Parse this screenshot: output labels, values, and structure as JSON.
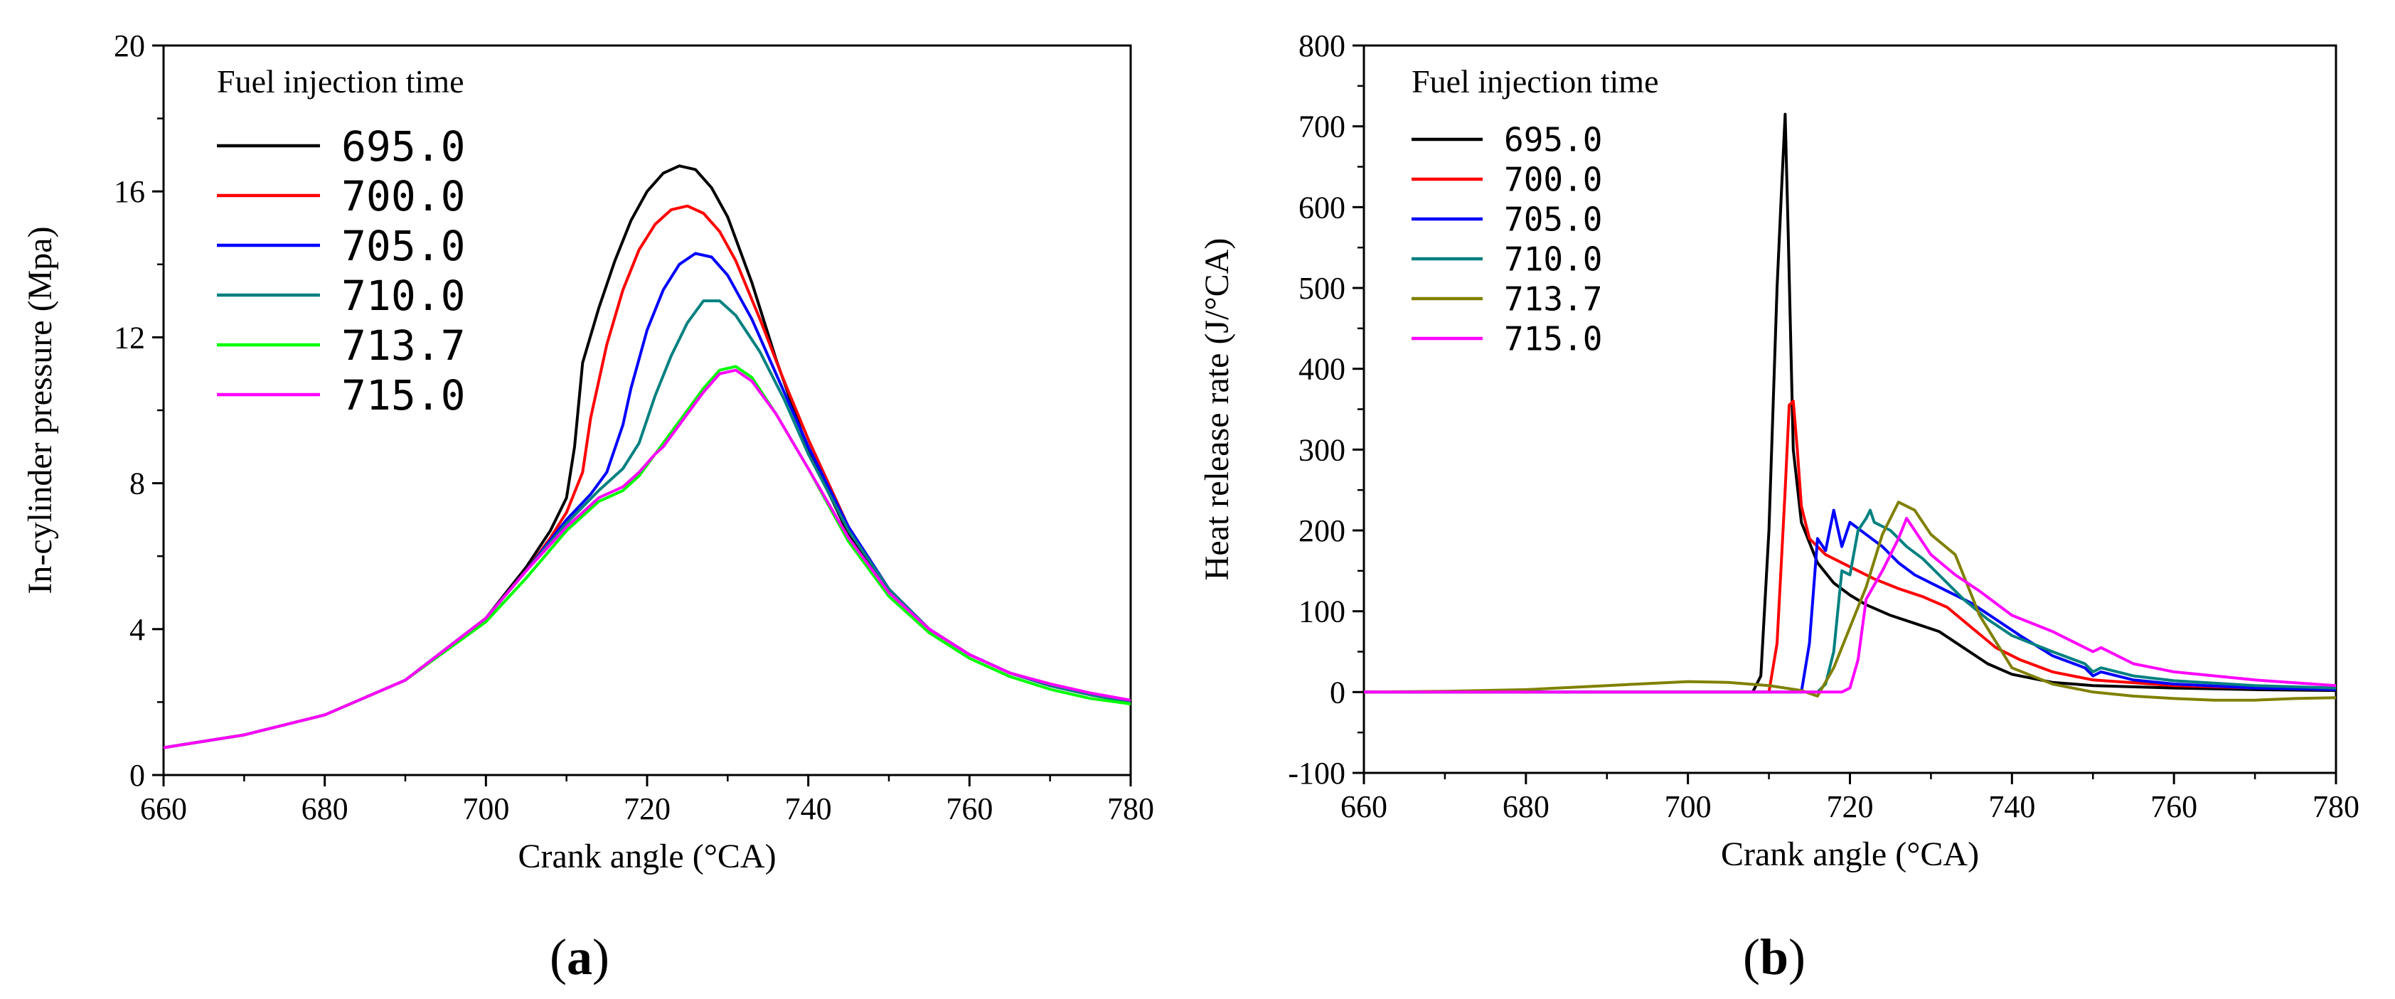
{
  "chart_data": [
    {
      "type": "line",
      "panel_label": "a",
      "xlabel": "Crank angle (°CA)",
      "ylabel": "In-cylinder pressure (Mpa)",
      "xlim": [
        660,
        780
      ],
      "ylim": [
        0,
        20
      ],
      "xticks": [
        660,
        680,
        700,
        720,
        740,
        760,
        780
      ],
      "yticks": [
        0,
        4,
        8,
        12,
        16,
        20
      ],
      "grid": false,
      "legend_title": "Fuel injection time",
      "legend_position": "top-left",
      "series": [
        {
          "name": "695.0",
          "color": "#000000",
          "x": [
            660,
            670,
            680,
            690,
            700,
            705,
            708,
            710,
            711,
            712,
            714,
            716,
            718,
            720,
            722,
            724,
            726,
            728,
            730,
            733,
            736,
            740,
            745,
            750,
            755,
            760,
            765,
            770,
            775,
            780
          ],
          "y": [
            0.75,
            1.1,
            1.65,
            2.6,
            4.3,
            5.7,
            6.7,
            7.6,
            9.0,
            11.3,
            12.8,
            14.1,
            15.2,
            16.0,
            16.5,
            16.7,
            16.6,
            16.1,
            15.3,
            13.5,
            11.4,
            8.9,
            6.6,
            5.0,
            4.0,
            3.3,
            2.8,
            2.45,
            2.2,
            2.0
          ]
        },
        {
          "name": "700.0",
          "color": "#ff0000",
          "x": [
            660,
            670,
            680,
            690,
            700,
            705,
            708,
            710,
            712,
            713,
            715,
            717,
            719,
            721,
            723,
            725,
            727,
            729,
            731,
            734,
            737,
            740,
            745,
            750,
            755,
            760,
            765,
            770,
            775,
            780
          ],
          "y": [
            0.75,
            1.1,
            1.65,
            2.6,
            4.3,
            5.6,
            6.5,
            7.2,
            8.3,
            9.8,
            11.8,
            13.3,
            14.4,
            15.1,
            15.5,
            15.6,
            15.4,
            14.9,
            14.1,
            12.5,
            10.8,
            9.2,
            6.8,
            5.1,
            4.0,
            3.3,
            2.8,
            2.45,
            2.2,
            2.0
          ]
        },
        {
          "name": "705.0",
          "color": "#0000ff",
          "x": [
            660,
            670,
            680,
            690,
            700,
            705,
            710,
            713,
            715,
            717,
            718,
            720,
            722,
            724,
            726,
            728,
            730,
            733,
            736,
            740,
            745,
            750,
            755,
            760,
            765,
            770,
            775,
            780
          ],
          "y": [
            0.75,
            1.1,
            1.65,
            2.6,
            4.3,
            5.6,
            7.0,
            7.7,
            8.3,
            9.6,
            10.6,
            12.2,
            13.3,
            14.0,
            14.3,
            14.2,
            13.7,
            12.5,
            11.0,
            9.0,
            6.8,
            5.1,
            4.0,
            3.3,
            2.8,
            2.45,
            2.2,
            2.0
          ]
        },
        {
          "name": "710.0",
          "color": "#008080",
          "x": [
            660,
            670,
            680,
            690,
            700,
            705,
            710,
            714,
            717,
            719,
            721,
            723,
            725,
            727,
            729,
            731,
            734,
            737,
            740,
            745,
            750,
            755,
            760,
            765,
            770,
            775,
            780
          ],
          "y": [
            0.75,
            1.1,
            1.65,
            2.6,
            4.3,
            5.6,
            6.9,
            7.8,
            8.4,
            9.1,
            10.4,
            11.5,
            12.4,
            13.0,
            13.0,
            12.6,
            11.6,
            10.3,
            8.8,
            6.7,
            5.1,
            4.0,
            3.3,
            2.8,
            2.45,
            2.2,
            2.0
          ]
        },
        {
          "name": "713.7",
          "color": "#00ff00",
          "x": [
            660,
            670,
            680,
            690,
            700,
            705,
            710,
            714,
            717,
            719,
            721,
            723,
            725,
            727,
            729,
            731,
            733,
            736,
            740,
            745,
            750,
            755,
            760,
            765,
            770,
            775,
            780
          ],
          "y": [
            0.75,
            1.1,
            1.65,
            2.6,
            4.2,
            5.4,
            6.7,
            7.5,
            7.8,
            8.2,
            8.8,
            9.4,
            10.0,
            10.6,
            11.1,
            11.2,
            10.9,
            9.9,
            8.4,
            6.4,
            4.9,
            3.9,
            3.2,
            2.7,
            2.35,
            2.1,
            1.95
          ]
        },
        {
          "name": "715.0",
          "color": "#ff00ff",
          "x": [
            660,
            670,
            680,
            690,
            700,
            705,
            710,
            714,
            717,
            719,
            721,
            722,
            723,
            725,
            727,
            729,
            731,
            733,
            736,
            740,
            745,
            750,
            755,
            760,
            765,
            770,
            775,
            780
          ],
          "y": [
            0.75,
            1.1,
            1.65,
            2.6,
            4.3,
            5.6,
            6.8,
            7.6,
            7.9,
            8.3,
            8.8,
            9.0,
            9.3,
            9.9,
            10.5,
            11.0,
            11.1,
            10.8,
            9.9,
            8.4,
            6.5,
            5.0,
            4.0,
            3.3,
            2.8,
            2.5,
            2.25,
            2.05
          ]
        }
      ]
    },
    {
      "type": "line",
      "panel_label": "b",
      "xlabel": "Crank angle (°CA)",
      "ylabel": "Heat release rate (J/°CA)",
      "xlim": [
        660,
        780
      ],
      "ylim": [
        -100,
        800
      ],
      "xticks": [
        660,
        680,
        700,
        720,
        740,
        760,
        780
      ],
      "yticks": [
        -100,
        0,
        100,
        200,
        300,
        400,
        500,
        600,
        700,
        800
      ],
      "grid": false,
      "legend_title": "Fuel injection time",
      "legend_position": "top-left",
      "series": [
        {
          "name": "695.0",
          "color": "#000000",
          "x": [
            660,
            708,
            709,
            710,
            711,
            711.5,
            712,
            712.4,
            713,
            714,
            716,
            718,
            720,
            722,
            725,
            728,
            731,
            734,
            737,
            740,
            745,
            750,
            760,
            770,
            780
          ],
          "y": [
            0,
            0,
            20,
            200,
            500,
            610,
            715,
            560,
            300,
            210,
            160,
            135,
            120,
            108,
            95,
            85,
            75,
            55,
            35,
            22,
            12,
            8,
            5,
            3,
            2
          ]
        },
        {
          "name": "700.0",
          "color": "#ff0000",
          "x": [
            660,
            710,
            711,
            712,
            712.5,
            713,
            713.5,
            714,
            715,
            717,
            720,
            723,
            726,
            729,
            732,
            735,
            738,
            741,
            745,
            750,
            760,
            770,
            780
          ],
          "y": [
            0,
            0,
            60,
            250,
            355,
            360,
            300,
            230,
            190,
            170,
            155,
            140,
            128,
            118,
            105,
            80,
            55,
            40,
            25,
            15,
            8,
            5,
            3
          ]
        },
        {
          "name": "705.0",
          "color": "#0000ff",
          "x": [
            660,
            714,
            715,
            716,
            717,
            718,
            719,
            720,
            722,
            724,
            726,
            728,
            730,
            732,
            735,
            738,
            741,
            745,
            749,
            750,
            751,
            755,
            760,
            770,
            780
          ],
          "y": [
            0,
            0,
            60,
            190,
            175,
            225,
            180,
            210,
            195,
            180,
            160,
            145,
            135,
            125,
            110,
            90,
            70,
            45,
            30,
            20,
            25,
            15,
            10,
            5,
            3
          ]
        },
        {
          "name": "710.0",
          "color": "#008080",
          "x": [
            660,
            716,
            717,
            718,
            719,
            720,
            721,
            722,
            722.5,
            723,
            725,
            727,
            729,
            731,
            734,
            737,
            740,
            745,
            749,
            750,
            751,
            755,
            760,
            770,
            780
          ],
          "y": [
            0,
            0,
            10,
            50,
            150,
            145,
            200,
            215,
            225,
            210,
            200,
            180,
            165,
            145,
            115,
            90,
            70,
            50,
            35,
            25,
            30,
            20,
            14,
            8,
            5
          ]
        },
        {
          "name": "713.7",
          "color": "#808000",
          "x": [
            660,
            670,
            680,
            690,
            700,
            705,
            710,
            714,
            716,
            718,
            720,
            722,
            724,
            726,
            728,
            730,
            733,
            736,
            740,
            745,
            750,
            755,
            760,
            765,
            770,
            775,
            780
          ],
          "y": [
            0,
            1,
            3,
            8,
            13,
            12,
            8,
            2,
            -5,
            30,
            80,
            130,
            195,
            235,
            225,
            195,
            170,
            95,
            30,
            10,
            0,
            -5,
            -8,
            -10,
            -10,
            -8,
            -7
          ]
        },
        {
          "name": "715.0",
          "color": "#ff00ff",
          "x": [
            660,
            719,
            720,
            721,
            722,
            724,
            726,
            727,
            728,
            730,
            733,
            736,
            740,
            745,
            750,
            751,
            755,
            760,
            770,
            780
          ],
          "y": [
            0,
            0,
            5,
            40,
            115,
            150,
            190,
            215,
            200,
            170,
            145,
            125,
            95,
            75,
            50,
            55,
            35,
            25,
            15,
            8
          ]
        }
      ]
    }
  ]
}
